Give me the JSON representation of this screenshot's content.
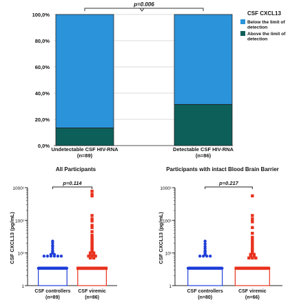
{
  "chart_data": [
    {
      "type": "bar",
      "stacked": true,
      "categories": [
        "Undetectable CSF HIV-RNA",
        "Detectable CSF HIV-RNA"
      ],
      "category_n": [
        "(n=89)",
        "(n=86)"
      ],
      "series": [
        {
          "name": "Above the limit of detection",
          "values": [
            13.5,
            31.4
          ],
          "color": "#0d5f5a"
        },
        {
          "name": "Below the limit of detection",
          "values": [
            86.5,
            68.6
          ],
          "color": "#2b93d9"
        }
      ],
      "ylim": [
        0,
        100
      ],
      "yticks": [
        "0,0%",
        "20,0%",
        "40,0%",
        "60,0%",
        "80,0%",
        "100,0%"
      ],
      "annotation": "p=0.006",
      "legend_title": "CSF CXCL13",
      "legend_position": "right",
      "grid": true
    },
    {
      "type": "scatter",
      "title": "All Participants",
      "ylabel": "CSF CXCL13 (pg/mL)",
      "yscale": "log",
      "ylim": [
        1,
        1000
      ],
      "yticks": [
        "1",
        "10¹",
        "100¹",
        "1000¹"
      ],
      "categories": [
        "CSF controllers",
        "CSF viremic"
      ],
      "category_n": [
        "(n=89)",
        "(n=86)"
      ],
      "annotation": "p=0.114",
      "bar_values": [
        3.4,
        3.4
      ],
      "series": [
        {
          "name": "CSF controllers",
          "color": "#1f3fd8",
          "marker": "circle",
          "values": [
            3.4,
            3.4,
            3.4,
            3.4,
            3.4,
            3.4,
            3.4,
            3.4,
            3.4,
            3.4,
            3.4,
            3.4,
            3.4,
            3.4,
            3.4,
            3.4,
            3.4,
            3.4,
            3.4,
            3.4,
            3.4,
            3.4,
            3.4,
            3.4,
            3.4,
            3.4,
            3.4,
            3.4,
            3.4,
            3.4,
            3.4,
            3.4,
            3.4,
            3.4,
            3.4,
            3.4,
            3.4,
            3.4,
            3.4,
            3.4,
            3.4,
            3.4,
            3.4,
            3.4,
            3.4,
            3.4,
            3.4,
            3.4,
            3.4,
            3.4,
            3.4,
            3.4,
            3.4,
            3.4,
            3.4,
            3.4,
            3.4,
            3.4,
            3.4,
            3.4,
            3.4,
            3.4,
            3.4,
            3.4,
            3.4,
            3.4,
            3.4,
            3.4,
            3.4,
            3.4,
            3.4,
            3.4,
            3.4,
            23,
            20,
            17,
            16,
            14,
            12,
            11,
            10,
            9,
            9,
            8,
            8,
            8,
            8,
            8,
            8
          ]
        },
        {
          "name": "CSF viremic",
          "color": "#e8321e",
          "marker": "square",
          "values": [
            3.4,
            3.4,
            3.4,
            3.4,
            3.4,
            3.4,
            3.4,
            3.4,
            3.4,
            3.4,
            3.4,
            3.4,
            3.4,
            3.4,
            3.4,
            3.4,
            3.4,
            3.4,
            3.4,
            3.4,
            3.4,
            3.4,
            3.4,
            3.4,
            3.4,
            3.4,
            3.4,
            3.4,
            3.4,
            3.4,
            3.4,
            3.4,
            3.4,
            3.4,
            3.4,
            3.4,
            3.4,
            3.4,
            3.4,
            3.4,
            3.4,
            3.4,
            3.4,
            3.4,
            3.4,
            3.4,
            3.4,
            3.4,
            3.4,
            3.4,
            3.4,
            3.4,
            3.4,
            3.4,
            3.4,
            3.4,
            780,
            620,
            560,
            140,
            110,
            95,
            70,
            60,
            45,
            35,
            30,
            27,
            24,
            21,
            19,
            17,
            15,
            14,
            13,
            12,
            11,
            10,
            10,
            9,
            9,
            8,
            8,
            8,
            7,
            7
          ]
        }
      ]
    },
    {
      "type": "scatter",
      "title": "Participants with intact Blood Brain Barrier",
      "ylabel": "CSF CXCL13 (pg/mL)",
      "yscale": "log",
      "ylim": [
        1,
        1000
      ],
      "yticks": [
        "1",
        "10¹",
        "100¹",
        "1000¹"
      ],
      "categories": [
        "CSF controllers",
        "CSF viremic"
      ],
      "category_n": [
        "(n=80)",
        "(n=66)"
      ],
      "annotation": "p=0.217",
      "bar_values": [
        3.4,
        3.4
      ],
      "series": [
        {
          "name": "CSF controllers",
          "color": "#1f3fd8",
          "marker": "circle",
          "values": [
            3.4,
            3.4,
            3.4,
            3.4,
            3.4,
            3.4,
            3.4,
            3.4,
            3.4,
            3.4,
            3.4,
            3.4,
            3.4,
            3.4,
            3.4,
            3.4,
            3.4,
            3.4,
            3.4,
            3.4,
            3.4,
            3.4,
            3.4,
            3.4,
            3.4,
            3.4,
            3.4,
            3.4,
            3.4,
            3.4,
            3.4,
            3.4,
            3.4,
            3.4,
            3.4,
            3.4,
            3.4,
            3.4,
            3.4,
            3.4,
            3.4,
            3.4,
            3.4,
            3.4,
            3.4,
            3.4,
            3.4,
            3.4,
            3.4,
            3.4,
            3.4,
            3.4,
            3.4,
            3.4,
            3.4,
            3.4,
            3.4,
            3.4,
            3.4,
            3.4,
            3.4,
            3.4,
            3.4,
            3.4,
            3.4,
            3.4,
            3.4,
            3.4,
            23,
            19,
            16,
            14,
            12,
            11,
            10,
            9,
            8,
            8,
            8,
            8
          ]
        },
        {
          "name": "CSF viremic",
          "color": "#e8321e",
          "marker": "square",
          "values": [
            3.4,
            3.4,
            3.4,
            3.4,
            3.4,
            3.4,
            3.4,
            3.4,
            3.4,
            3.4,
            3.4,
            3.4,
            3.4,
            3.4,
            3.4,
            3.4,
            3.4,
            3.4,
            3.4,
            3.4,
            3.4,
            3.4,
            3.4,
            3.4,
            3.4,
            3.4,
            3.4,
            3.4,
            3.4,
            3.4,
            3.4,
            3.4,
            3.4,
            3.4,
            3.4,
            3.4,
            3.4,
            3.4,
            3.4,
            3.4,
            3.4,
            3.4,
            3.4,
            3.4,
            560,
            140,
            110,
            90,
            60,
            40,
            30,
            25,
            21,
            18,
            15,
            13,
            12,
            11,
            10,
            9,
            9,
            8,
            8,
            7,
            7,
            7
          ]
        }
      ]
    }
  ]
}
